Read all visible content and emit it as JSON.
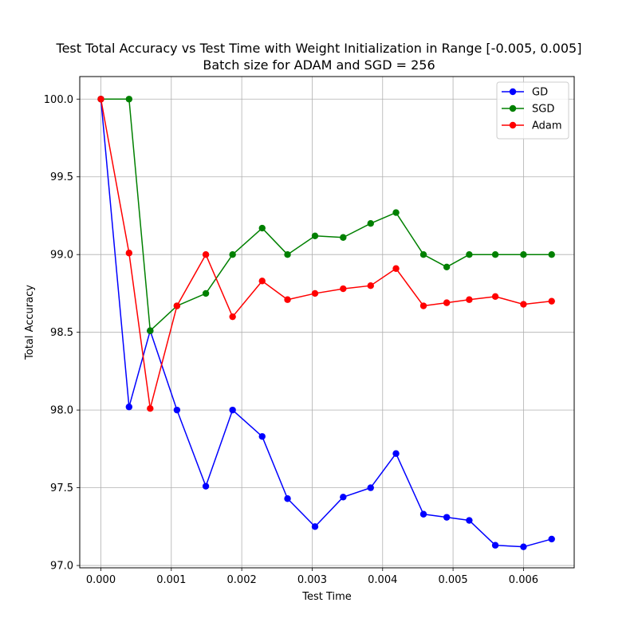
{
  "chart_data": {
    "type": "line",
    "title": "Test Total Accuracy vs Test Time with Weight Initialization in Range [-0.005, 0.005]",
    "subtitle": "Batch size for ADAM and SGD = 256",
    "xlabel": "Test Time",
    "ylabel": "Total Accuracy",
    "xlim": [
      -0.0003,
      0.00672
    ],
    "ylim": [
      96.985,
      100.145
    ],
    "x_ticks": [
      0.0,
      0.001,
      0.002,
      0.003,
      0.004,
      0.005,
      0.006
    ],
    "x_tick_labels": [
      "0.000",
      "0.001",
      "0.002",
      "0.003",
      "0.004",
      "0.005",
      "0.006"
    ],
    "y_ticks": [
      97.0,
      97.5,
      98.0,
      98.5,
      99.0,
      99.5,
      100.0
    ],
    "y_tick_labels": [
      "97.0",
      "97.5",
      "98.0",
      "98.5",
      "99.0",
      "99.5",
      "100.0"
    ],
    "grid": true,
    "legend_position": "top-right",
    "x": [
      0.0,
      0.0004,
      0.0007,
      0.00108,
      0.00149,
      0.00187,
      0.00229,
      0.00265,
      0.00304,
      0.00344,
      0.00383,
      0.00419,
      0.00458,
      0.00491,
      0.00523,
      0.0056,
      0.006,
      0.0064
    ],
    "series": [
      {
        "name": "GD",
        "color": "#0000ff",
        "values": [
          100.0,
          98.02,
          98.51,
          98.0,
          97.51,
          98.0,
          97.83,
          97.43,
          97.25,
          97.44,
          97.5,
          97.72,
          97.33,
          97.31,
          97.29,
          97.13,
          97.12,
          97.17
        ]
      },
      {
        "name": "SGD",
        "color": "#008000",
        "values": [
          100.0,
          100.0,
          98.51,
          98.67,
          98.75,
          99.0,
          99.17,
          99.0,
          99.12,
          99.11,
          99.2,
          99.27,
          99.0,
          98.92,
          99.0,
          99.0,
          99.0,
          99.0
        ]
      },
      {
        "name": "Adam",
        "color": "#ff0000",
        "values": [
          100.0,
          99.01,
          98.01,
          98.67,
          99.0,
          98.6,
          98.83,
          98.71,
          98.75,
          98.78,
          98.8,
          98.91,
          98.67,
          98.69,
          98.71,
          98.73,
          98.68,
          98.7
        ]
      }
    ]
  }
}
